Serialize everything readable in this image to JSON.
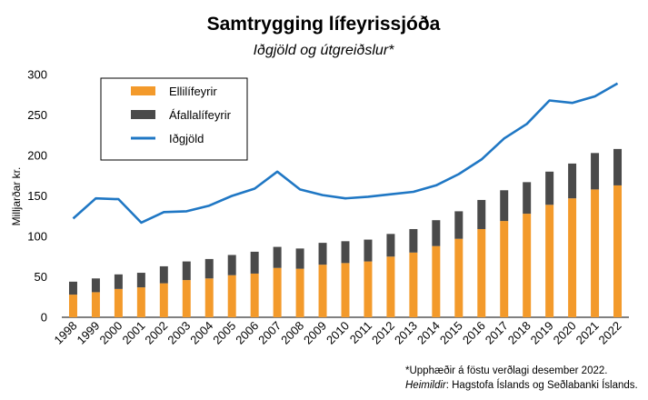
{
  "chart_data": {
    "type": "bar",
    "title": "Samtrygging lífeyrissjóða",
    "subtitle": "Iðgjöld og útgreiðslur*",
    "ylabel": "Milljarðar kr.",
    "xlabel": "",
    "ylim": [
      0,
      300
    ],
    "yticks": [
      0,
      50,
      100,
      150,
      200,
      250,
      300
    ],
    "grid": false,
    "legend_position": "top-left",
    "stacked": true,
    "categories": [
      "1998",
      "1999",
      "2000",
      "2001",
      "2002",
      "2003",
      "2004",
      "2005",
      "2006",
      "2007",
      "2008",
      "2009",
      "2010",
      "2011",
      "2012",
      "2013",
      "2014",
      "2015",
      "2016",
      "2017",
      "2018",
      "2019",
      "2020",
      "2021",
      "2022"
    ],
    "series": [
      {
        "name": "Ellilífeyrir",
        "kind": "bar",
        "color": "#f39a2b",
        "values": [
          28,
          31,
          35,
          37,
          42,
          46,
          48,
          52,
          54,
          61,
          60,
          65,
          67,
          69,
          75,
          80,
          88,
          97,
          109,
          119,
          128,
          139,
          147,
          158,
          163
        ]
      },
      {
        "name": "Áfallalífeyrir",
        "kind": "bar",
        "color": "#4a4a4a",
        "values": [
          16,
          17,
          18,
          18,
          21,
          23,
          24,
          25,
          27,
          26,
          25,
          27,
          27,
          27,
          28,
          29,
          32,
          34,
          36,
          38,
          39,
          41,
          43,
          45,
          45
        ]
      },
      {
        "name": "Iðgjöld",
        "kind": "line",
        "color": "#1f77c4",
        "values": [
          122,
          147,
          146,
          117,
          130,
          131,
          138,
          150,
          159,
          180,
          158,
          151,
          147,
          149,
          152,
          155,
          163,
          177,
          195,
          221,
          239,
          268,
          265,
          273,
          289
        ]
      }
    ],
    "notes": [
      "*Upphæðir á föstu verðlagi desember 2022."
    ],
    "source_label": "Heimildir",
    "source_text": ": Hagstofa Íslands og Seðlabanki Íslands."
  }
}
